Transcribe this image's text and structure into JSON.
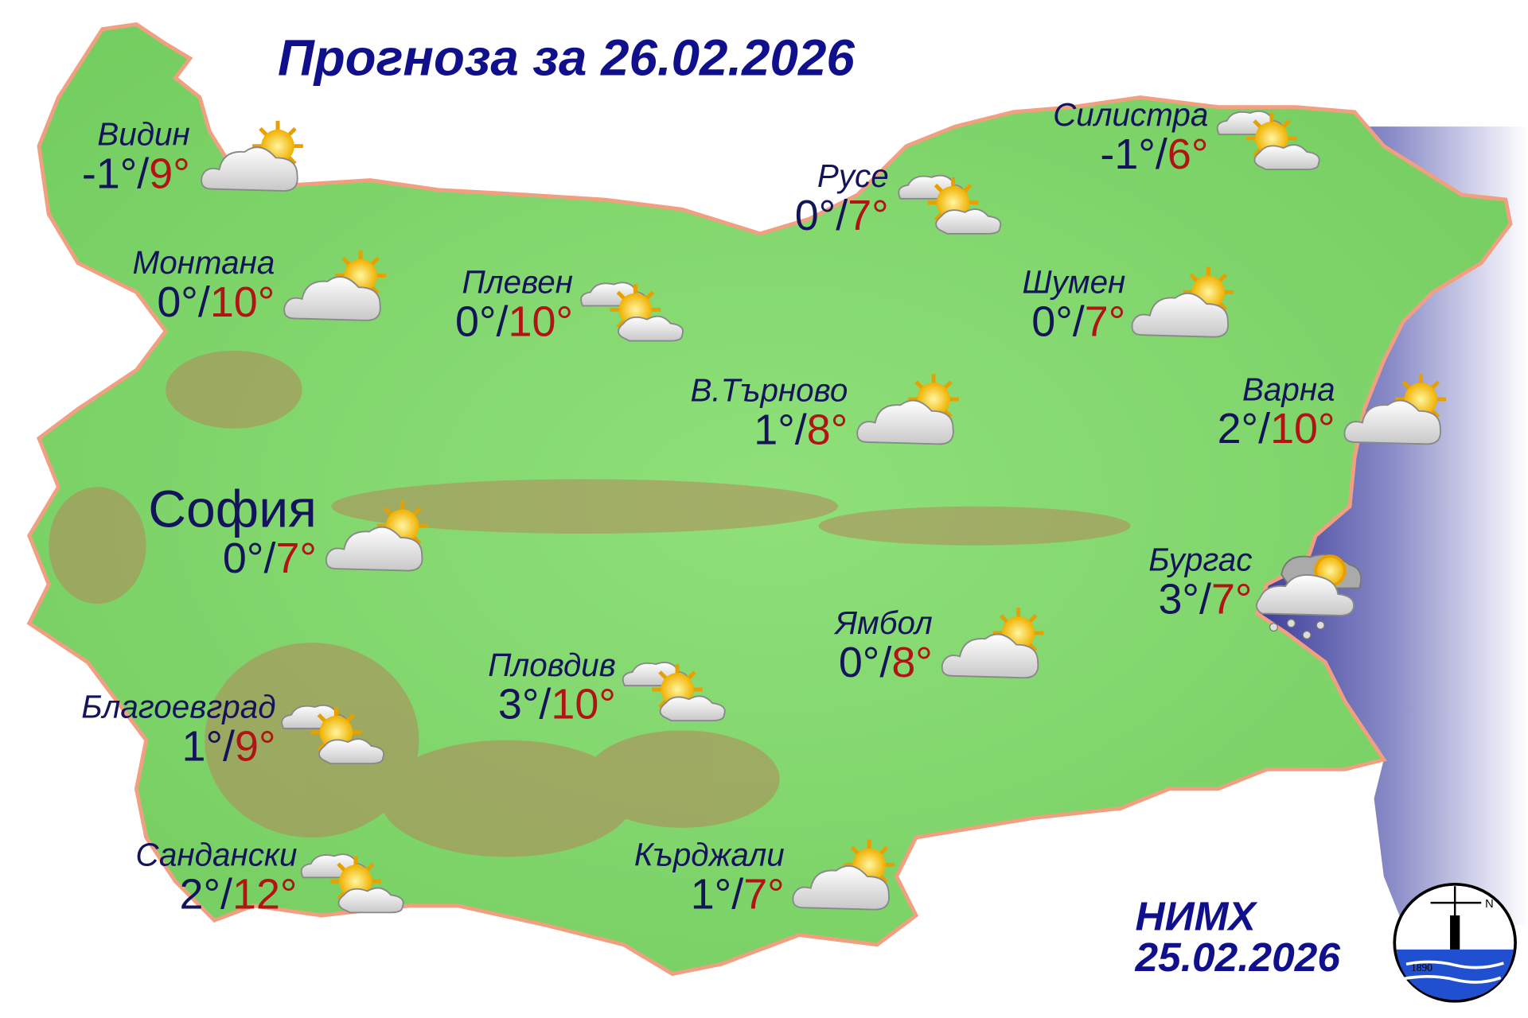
{
  "title": "Прогноза за 26.02.2026",
  "colors": {
    "land": "#7fd66a",
    "mountain": "#b5865a",
    "border": "#f0a080",
    "sea": "#4a4aa0",
    "min_temp": "#14145a",
    "max_temp": "#b01414",
    "title": "#10108c"
  },
  "cities": [
    {
      "name": "Видин",
      "min": "-1°",
      "max": "9°",
      "icon": "cloud-sun"
    },
    {
      "name": "Монтана",
      "min": "0°",
      "max": "10°",
      "icon": "cloud-sun"
    },
    {
      "name": "Плевен",
      "min": "0°",
      "max": "10°",
      "icon": "sun-between-clouds"
    },
    {
      "name": "Русе",
      "min": "0°",
      "max": "7°",
      "icon": "sun-between-clouds"
    },
    {
      "name": "Силистра",
      "min": "-1°",
      "max": "6°",
      "icon": "sun-between-clouds"
    },
    {
      "name": "Шумен",
      "min": "0°",
      "max": "7°",
      "icon": "cloud-sun"
    },
    {
      "name": "В.Търново",
      "min": "1°",
      "max": "8°",
      "icon": "cloud-sun"
    },
    {
      "name": "Варна",
      "min": "2°",
      "max": "10°",
      "icon": "cloud-sun"
    },
    {
      "name": "София",
      "min": "0°",
      "max": "7°",
      "icon": "cloud-sun"
    },
    {
      "name": "Бургас",
      "min": "3°",
      "max": "7°",
      "icon": "cloud-sun-rain"
    },
    {
      "name": "Ямбол",
      "min": "0°",
      "max": "8°",
      "icon": "cloud-sun"
    },
    {
      "name": "Пловдив",
      "min": "3°",
      "max": "10°",
      "icon": "sun-between-clouds"
    },
    {
      "name": "Благоевград",
      "min": "1°",
      "max": "9°",
      "icon": "sun-between-clouds"
    },
    {
      "name": "Сандански",
      "min": "2°",
      "max": "12°",
      "icon": "sun-between-clouds"
    },
    {
      "name": "Кърджали",
      "min": "1°",
      "max": "7°",
      "icon": "cloud-sun"
    }
  ],
  "credit": {
    "org": "НИМХ",
    "date": "25.02.2026"
  },
  "logo": {
    "year": "1890",
    "letter": "N"
  }
}
